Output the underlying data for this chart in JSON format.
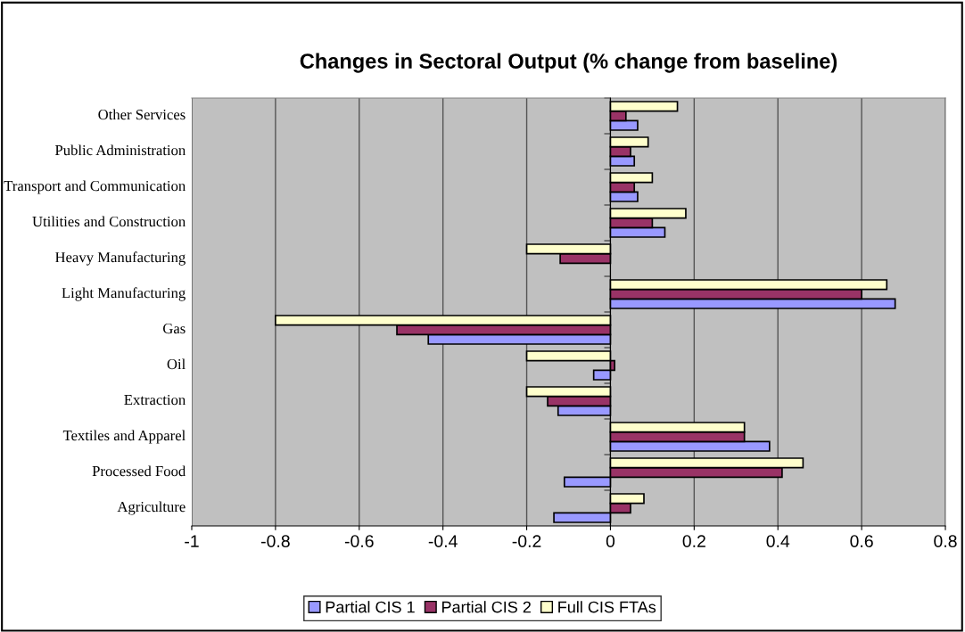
{
  "chart_data": {
    "type": "bar",
    "orientation": "horizontal",
    "title": "Changes in Sectoral Output (% change from baseline)",
    "categories": [
      "Other Services",
      "Public Administration",
      "Transport and Communication",
      "Utilities and Construction",
      "Heavy Manufacturing",
      "Light Manufacturing",
      "Gas",
      "Oil",
      "Extraction",
      "Textiles and Apparel",
      "Processed Food",
      "Agriculture"
    ],
    "series": [
      {
        "name": "Partial CIS 1",
        "color": "#9999ff",
        "values": [
          0.065,
          0.057,
          0.065,
          0.13,
          null,
          0.68,
          -0.435,
          -0.04,
          -0.125,
          0.38,
          -0.11,
          -0.135
        ]
      },
      {
        "name": "Partial CIS 2",
        "color": "#993366",
        "values": [
          0.037,
          0.048,
          0.057,
          0.1,
          -0.12,
          0.6,
          -0.51,
          0.01,
          -0.15,
          0.32,
          0.41,
          0.048
        ]
      },
      {
        "name": "Full CIS FTAs",
        "color": "#ffffcc",
        "values": [
          0.16,
          0.09,
          0.1,
          0.18,
          -0.2,
          0.66,
          -0.8,
          -0.2,
          -0.2,
          0.32,
          0.46,
          0.08
        ]
      }
    ],
    "xlim": [
      -1,
      0.8
    ],
    "xticks": [
      -1,
      -0.8,
      -0.6,
      -0.4,
      -0.2,
      0,
      0.2,
      0.4,
      0.6,
      0.8
    ],
    "grid": "x",
    "legend": "bottom"
  }
}
